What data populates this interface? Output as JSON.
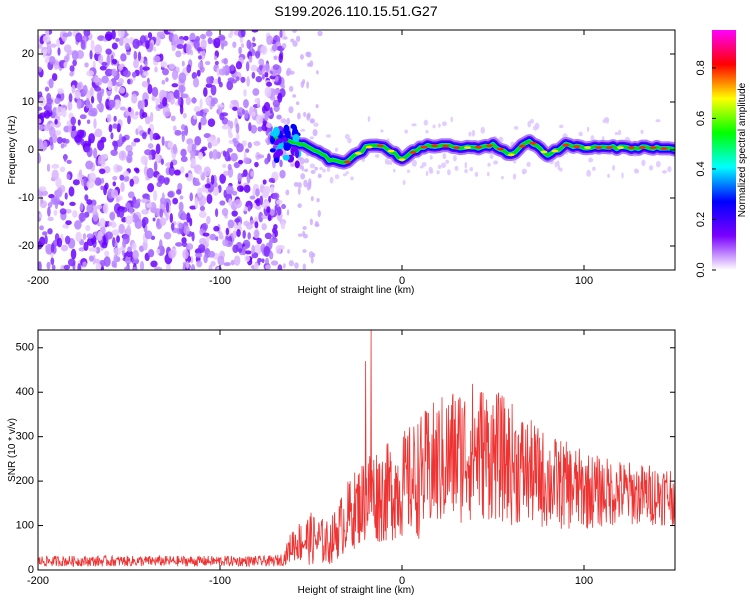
{
  "title": "S199.2026.110.15.51.G27",
  "chart_data": [
    {
      "type": "heatmap",
      "xlabel": "Height of straight line (km)",
      "ylabel": "Frequency (Hz)",
      "xlim": [
        -200,
        150
      ],
      "ylim": [
        -25,
        25
      ],
      "xticks": [
        -200,
        -100,
        0,
        100
      ],
      "yticks": [
        -20,
        -10,
        0,
        10,
        20
      ],
      "grid": false,
      "colorbar": {
        "label": "Normalized spectral amplitude",
        "range": [
          0,
          0.95
        ],
        "ticks": [
          0.0,
          0.2,
          0.4,
          0.6,
          0.8
        ],
        "colors": [
          "#ffffff",
          "#7a00ff",
          "#0000ff",
          "#00ffff",
          "#00ff00",
          "#ffff00",
          "#ff0000",
          "#ff00ff"
        ]
      },
      "noise_region_end_km": -65,
      "trace": {
        "x": [
          -70,
          -60,
          -50,
          -40,
          -30,
          -20,
          -10,
          0,
          10,
          20,
          30,
          40,
          50,
          60,
          70,
          80,
          90,
          100,
          110,
          120,
          130,
          140,
          150
        ],
        "y": [
          2.5,
          1.5,
          0.5,
          -2,
          -2.5,
          0.5,
          1,
          -2,
          0.5,
          1,
          0.5,
          0.5,
          1,
          -1,
          2,
          -1,
          1,
          0.5,
          0.5,
          0.5,
          0.5,
          0.5,
          0
        ]
      }
    },
    {
      "type": "line",
      "xlabel": "Height of straight line (km)",
      "ylabel": "SNR (10 * v/v)",
      "xlim": [
        -200,
        150
      ],
      "ylim": [
        0,
        540
      ],
      "xticks": [
        -200,
        -100,
        0,
        100
      ],
      "yticks": [
        0,
        100,
        200,
        300,
        400,
        500
      ],
      "grid": false,
      "color": "#ee3333",
      "envelope": {
        "x": [
          -200,
          -70,
          -65,
          -60,
          -50,
          -40,
          -30,
          -20,
          -18,
          -10,
          0,
          10,
          20,
          30,
          40,
          50,
          60,
          70,
          80,
          90,
          100,
          110,
          120,
          130,
          140,
          150
        ],
        "base": [
          20,
          20,
          25,
          60,
          70,
          60,
          120,
          160,
          170,
          170,
          190,
          210,
          240,
          260,
          270,
          260,
          240,
          220,
          200,
          190,
          180,
          175,
          175,
          170,
          170,
          170
        ],
        "spread": [
          12,
          12,
          15,
          40,
          60,
          50,
          80,
          100,
          110,
          110,
          120,
          140,
          150,
          160,
          160,
          150,
          140,
          120,
          110,
          100,
          90,
          80,
          75,
          70,
          70,
          70
        ]
      },
      "peaks": [
        {
          "x": -17,
          "y": 540
        },
        {
          "x": -20,
          "y": 470
        }
      ]
    }
  ]
}
